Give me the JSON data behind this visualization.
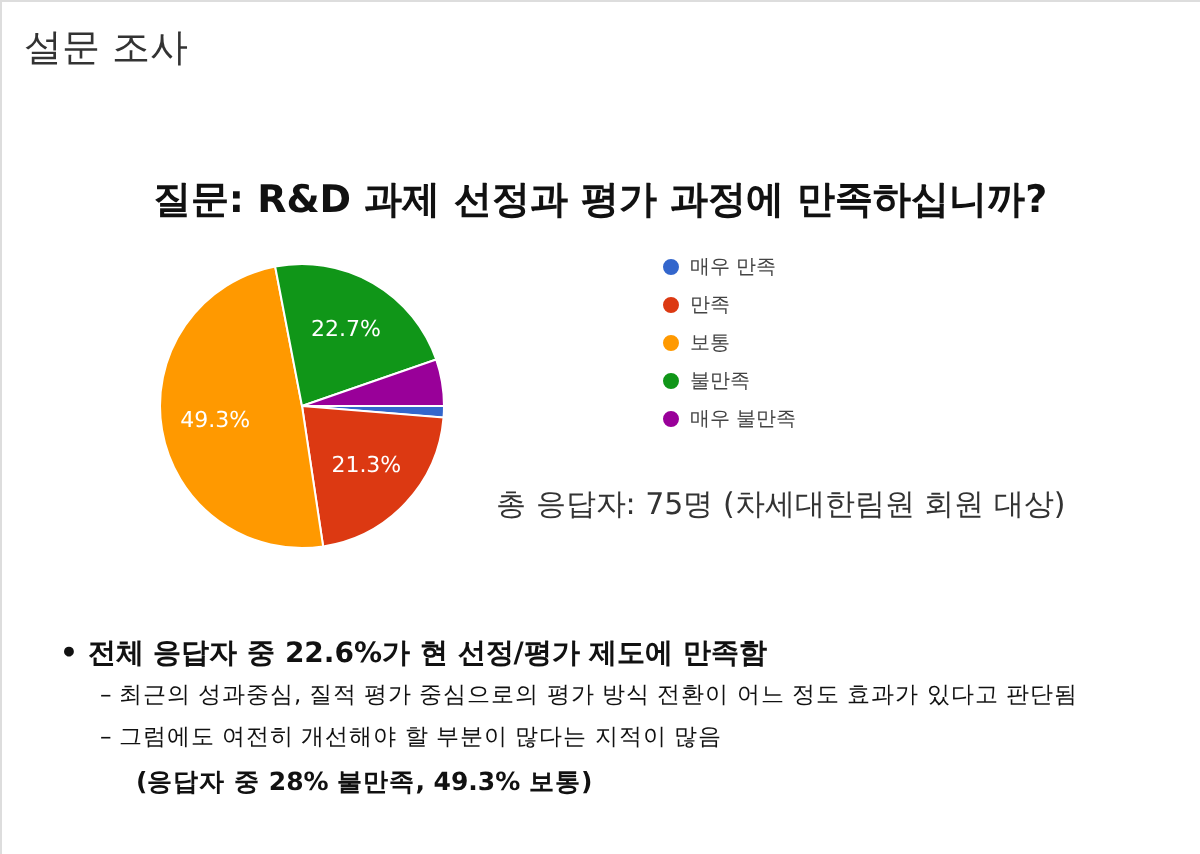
{
  "chart_data": {
    "type": "pie",
    "title": "질문: R&D 과제 선정과 평가 과정에 만족하십니까?",
    "categories": [
      "매우 만족",
      "만족",
      "보통",
      "불만족",
      "매우 불만족"
    ],
    "values": [
      1.3,
      21.3,
      49.3,
      22.7,
      5.3
    ],
    "colors": [
      "#3366cc",
      "#dc3912",
      "#ff9900",
      "#109618",
      "#990099"
    ],
    "value_labels": [
      null,
      "21.3%",
      "49.3%",
      "22.7%",
      null
    ],
    "legend": "right",
    "annotations": [
      "설문 조사",
      "총 응답자: 75명 (차세대한림원 회원 대상)",
      "•  전체 응답자 중 22.6%가 현 선정/평가 제도에 만족함",
      "–  최근의 성과중심, 질적 평가 중심으로의 평가 방식 전환이 어느 정도 효과가 있다고 판단됨",
      "–  그럼에도 여전히 개선해야 할 부분이 많다는 지적이 많음",
      "(응답자 중 28% 불만족, 49.3% 보통)"
    ]
  }
}
